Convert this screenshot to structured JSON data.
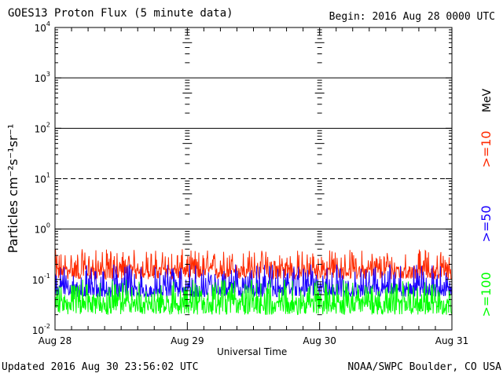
{
  "chart_data": {
    "type": "line",
    "title": "GOES13 Proton Flux (5 minute data)",
    "begin_label": "Begin: 2016 Aug 28 0000 UTC",
    "xlabel": "Universal Time",
    "ylabel": "Particles cm⁻²s⁻¹sr⁻¹",
    "y_scale": "log",
    "ylim": [
      0.01,
      10000
    ],
    "y_ticks": [
      {
        "base": "10",
        "exp": "-2",
        "value": 0.01
      },
      {
        "base": "10",
        "exp": "-1",
        "value": 0.1
      },
      {
        "base": "10",
        "exp": "0",
        "value": 1
      },
      {
        "base": "10",
        "exp": "1",
        "value": 10
      },
      {
        "base": "10",
        "exp": "2",
        "value": 100
      },
      {
        "base": "10",
        "exp": "3",
        "value": 1000
      },
      {
        "base": "10",
        "exp": "4",
        "value": 10000
      }
    ],
    "x_ticks": [
      "Aug 28",
      "Aug 29",
      "Aug 30",
      "Aug 31"
    ],
    "xlim": [
      "2016-08-28",
      "2016-08-31"
    ],
    "data_end": "2016-08-30T23:56",
    "threshold_lines": [
      {
        "value": 1,
        "style": "solid"
      },
      {
        "value": 10,
        "style": "dashed"
      },
      {
        "value": 100,
        "style": "solid"
      },
      {
        "value": 1000,
        "style": "solid"
      }
    ],
    "unit_label": "MeV",
    "series": [
      {
        "name": ">=10",
        "color": "#ff2a00",
        "typical": 0.16,
        "range": [
          0.1,
          0.4
        ]
      },
      {
        "name": ">=50",
        "color": "#1a00ff",
        "typical": 0.07,
        "range": [
          0.045,
          0.2
        ]
      },
      {
        "name": ">=100",
        "color": "#00ff00",
        "typical": 0.035,
        "range": [
          0.02,
          0.1
        ]
      }
    ]
  },
  "footer": {
    "updated": "Updated 2016 Aug 30 23:56:02 UTC",
    "credit": "NOAA/SWPC Boulder, CO USA"
  }
}
